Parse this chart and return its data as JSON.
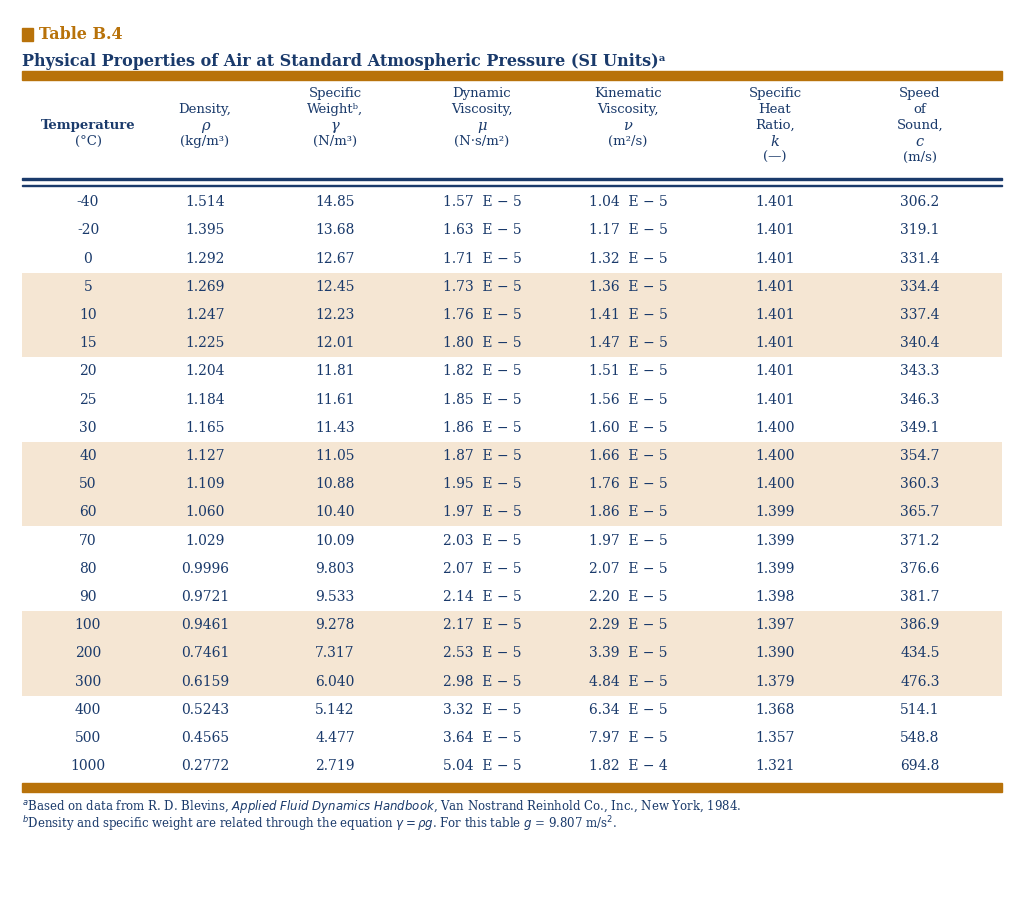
{
  "title_label": "Table B.4",
  "title_main": "Physical Properties of Air at Standard Atmospheric Pressure (SI Units)ᵃ",
  "rows": [
    [
      "-40",
      "1.514",
      "14.85",
      "1.57  E − 5",
      "1.04  E − 5",
      "1.401",
      "306.2"
    ],
    [
      "-20",
      "1.395",
      "13.68",
      "1.63  E − 5",
      "1.17  E − 5",
      "1.401",
      "319.1"
    ],
    [
      "0",
      "1.292",
      "12.67",
      "1.71  E − 5",
      "1.32  E − 5",
      "1.401",
      "331.4"
    ],
    [
      "5",
      "1.269",
      "12.45",
      "1.73  E − 5",
      "1.36  E − 5",
      "1.401",
      "334.4"
    ],
    [
      "10",
      "1.247",
      "12.23",
      "1.76  E − 5",
      "1.41  E − 5",
      "1.401",
      "337.4"
    ],
    [
      "15",
      "1.225",
      "12.01",
      "1.80  E − 5",
      "1.47  E − 5",
      "1.401",
      "340.4"
    ],
    [
      "20",
      "1.204",
      "11.81",
      "1.82  E − 5",
      "1.51  E − 5",
      "1.401",
      "343.3"
    ],
    [
      "25",
      "1.184",
      "11.61",
      "1.85  E − 5",
      "1.56  E − 5",
      "1.401",
      "346.3"
    ],
    [
      "30",
      "1.165",
      "11.43",
      "1.86  E − 5",
      "1.60  E − 5",
      "1.400",
      "349.1"
    ],
    [
      "40",
      "1.127",
      "11.05",
      "1.87  E − 5",
      "1.66  E − 5",
      "1.400",
      "354.7"
    ],
    [
      "50",
      "1.109",
      "10.88",
      "1.95  E − 5",
      "1.76  E − 5",
      "1.400",
      "360.3"
    ],
    [
      "60",
      "1.060",
      "10.40",
      "1.97  E − 5",
      "1.86  E − 5",
      "1.399",
      "365.7"
    ],
    [
      "70",
      "1.029",
      "10.09",
      "2.03  E − 5",
      "1.97  E − 5",
      "1.399",
      "371.2"
    ],
    [
      "80",
      "0.9996",
      "9.803",
      "2.07  E − 5",
      "2.07  E − 5",
      "1.399",
      "376.6"
    ],
    [
      "90",
      "0.9721",
      "9.533",
      "2.14  E − 5",
      "2.20  E − 5",
      "1.398",
      "381.7"
    ],
    [
      "100",
      "0.9461",
      "9.278",
      "2.17  E − 5",
      "2.29  E − 5",
      "1.397",
      "386.9"
    ],
    [
      "200",
      "0.7461",
      "7.317",
      "2.53  E − 5",
      "3.39  E − 5",
      "1.390",
      "434.5"
    ],
    [
      "300",
      "0.6159",
      "6.040",
      "2.98  E − 5",
      "4.84  E − 5",
      "1.379",
      "476.3"
    ],
    [
      "400",
      "0.5243",
      "5.142",
      "3.32  E − 5",
      "6.34  E − 5",
      "1.368",
      "514.1"
    ],
    [
      "500",
      "0.4565",
      "4.477",
      "3.64  E − 5",
      "7.97  E − 5",
      "1.357",
      "548.8"
    ],
    [
      "1000",
      "0.2772",
      "2.719",
      "5.04  E − 5",
      "1.82  E − 4",
      "1.321",
      "694.8"
    ]
  ],
  "shaded_rows": [
    3,
    4,
    5,
    9,
    10,
    11,
    15,
    16,
    17
  ],
  "shade_color": "#f5e6d3",
  "text_color": "#1a3a6b",
  "orange_color": "#b8720a",
  "footnote_a": "ᵃBased on data from R. D. Blevins, ‘Applied Fluid Dynamics Handbook’, Van Nostrand Reinhold Co., Inc., New York, 1984.",
  "footnote_b": "ᵇDensity and specific weight are related through the equation γ = ρg. For this table g = 9.807 m/s²."
}
